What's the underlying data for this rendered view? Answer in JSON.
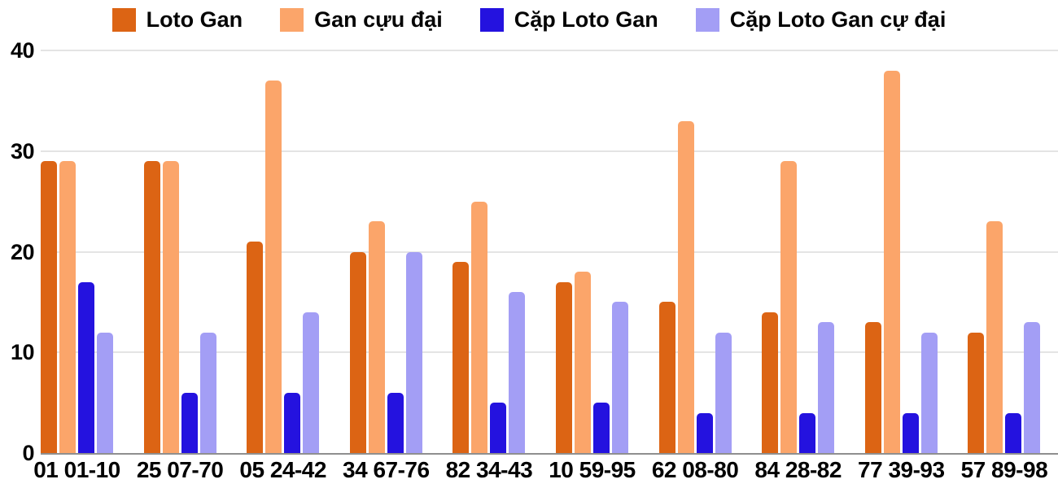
{
  "chart_data": {
    "type": "bar",
    "title": "",
    "xlabel": "",
    "ylabel": "",
    "categories": [
      "01 01-10",
      "25 07-70",
      "05 24-42",
      "34 67-76",
      "82 34-43",
      "10 59-95",
      "62 08-80",
      "84 28-82",
      "77 39-93",
      "57 89-98"
    ],
    "series": [
      {
        "name": "Loto Gan",
        "color": "#dc6414",
        "values": [
          29,
          29,
          21,
          20,
          19,
          17,
          15,
          14,
          13,
          12
        ]
      },
      {
        "name": "Gan cựu đại",
        "color": "#fba56a",
        "values": [
          29,
          29,
          37,
          23,
          25,
          18,
          33,
          29,
          38,
          23
        ]
      },
      {
        "name": "Cặp Loto Gan",
        "color": "#2412df",
        "values": [
          17,
          6,
          6,
          6,
          5,
          5,
          4,
          4,
          4,
          4
        ]
      },
      {
        "name": "Cặp Loto Gan cự đại",
        "color": "#a39ef5",
        "values": [
          12,
          12,
          14,
          20,
          16,
          15,
          12,
          13,
          12,
          13
        ]
      }
    ],
    "ylim": [
      0,
      40
    ],
    "yticks": [
      0,
      10,
      20,
      30,
      40
    ],
    "grid": true,
    "legend_position": "top"
  },
  "colors": {
    "background": "#ffffff",
    "grid": "#e4e4e4",
    "baseline": "#8f8f8f",
    "text": "#000000"
  }
}
